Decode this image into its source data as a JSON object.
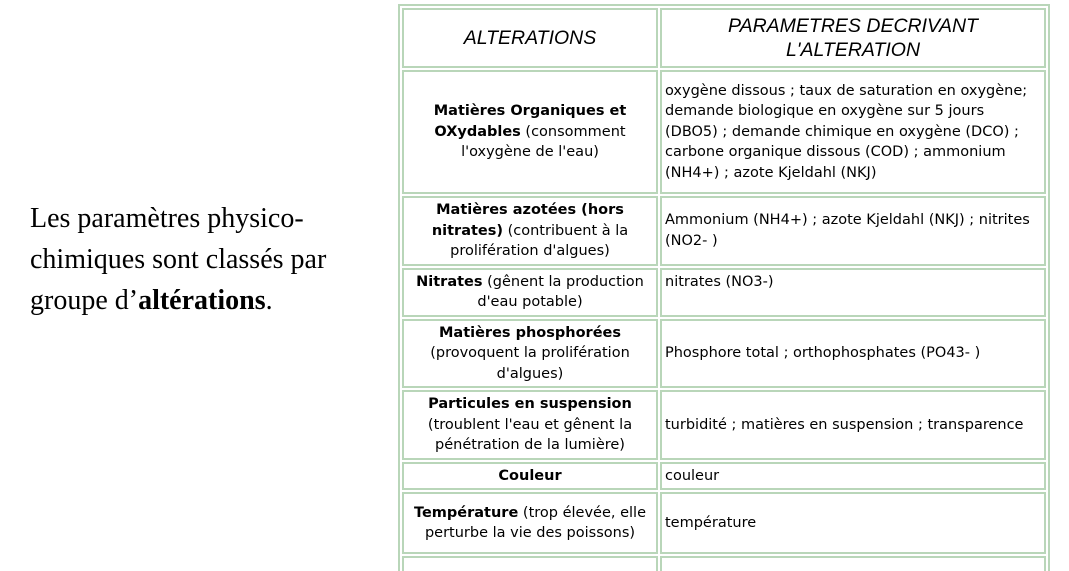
{
  "intro": {
    "text_before": "Les paramètres physico-chimiques sont classés par groupe d’",
    "emphasis": "altérations",
    "text_after": "."
  },
  "table": {
    "headers": [
      "ALTERATIONS",
      "PARAMETRES DECRIVANT L'ALTERATION"
    ],
    "rows": [
      {
        "name": "Matières Organiques et OXydables",
        "note": " (consomment l'oxygène de l'eau)",
        "params": "oxygène dissous ; taux de saturation en oxygène; demande biologique en oxygène sur 5 jours (DBO5) ; demande chimique en oxygène (DCO) ; carbone organique dissous (COD) ; ammonium (NH4+) ; azote Kjeldahl (NKJ)"
      },
      {
        "name": "Matières azotées (hors nitrates)",
        "note": " (contribuent à la prolifération d'algues)",
        "params": "Ammonium (NH4+) ; azote Kjeldahl (NKJ) ; nitrites (NO2- )"
      },
      {
        "name": "Nitrates",
        "note": " (gênent la production d'eau potable)",
        "params": "nitrates (NO3-)"
      },
      {
        "name": "Matières phosphorées",
        "note": " (provoquent la prolifération d'algues)",
        "params": "Phosphore total ; orthophosphates (PO43- )"
      },
      {
        "name": "Particules en suspension",
        "note": " (troublent l'eau et gênent la pénétration de la lumière)",
        "params": "turbidité ; matières en suspension ; transparence"
      },
      {
        "name": "Couleur",
        "note": "",
        "params": "couleur"
      },
      {
        "name": "Température",
        "note": " (trop élevée, elle perturbe la vie des poissons)",
        "params": "température"
      },
      {
        "name": "",
        "note": "",
        "params": ""
      }
    ]
  }
}
